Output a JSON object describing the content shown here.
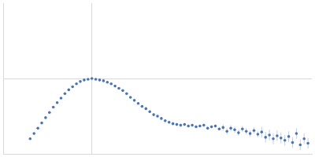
{
  "chart_data": {
    "type": "scatter",
    "x": [
      35,
      40,
      45,
      50,
      55,
      60,
      65,
      70,
      75,
      80,
      85,
      90,
      95,
      100,
      105,
      110,
      115,
      120,
      125,
      130,
      135,
      140,
      145,
      150,
      155,
      160,
      165,
      170,
      175,
      180,
      185,
      190,
      195,
      200,
      205,
      210,
      215,
      220,
      225,
      230,
      235,
      240,
      245,
      250,
      255,
      260,
      265,
      270,
      275,
      280,
      285,
      290,
      295,
      300,
      305,
      310,
      315,
      320,
      325,
      330,
      335,
      340,
      345,
      350,
      355,
      360,
      365,
      370,
      375,
      380,
      385,
      390,
      395
    ],
    "values": [
      20,
      27,
      34,
      41,
      48,
      55,
      62,
      68,
      74,
      80,
      85,
      89,
      93,
      96,
      98,
      99,
      100,
      99,
      98,
      97,
      95,
      93,
      90,
      87,
      84,
      80,
      75,
      71,
      67,
      63,
      60,
      56,
      52,
      50,
      47,
      44,
      42,
      40,
      39,
      38,
      39,
      37,
      38,
      36,
      37,
      38,
      34,
      36,
      37,
      33,
      35,
      30,
      34,
      32,
      28,
      33,
      30,
      27,
      31,
      26,
      29,
      22,
      25,
      20,
      24,
      21,
      18,
      23,
      15,
      27,
      12,
      20,
      14
    ],
    "errors": [
      1,
      1,
      1,
      1,
      1,
      1,
      1,
      1,
      1,
      1,
      1,
      1,
      1,
      1,
      1,
      1,
      1,
      1,
      1,
      1,
      1,
      1,
      1,
      1,
      1,
      1,
      1,
      1,
      1,
      1,
      2,
      2,
      2,
      2,
      2,
      2,
      2,
      2,
      2,
      2,
      2,
      2,
      2,
      2,
      2,
      2,
      2,
      2,
      2,
      2,
      4,
      4,
      4,
      4,
      4,
      4,
      4,
      4,
      4,
      4,
      7,
      7,
      7,
      7,
      7,
      7,
      7,
      7,
      7,
      7,
      7,
      7,
      7
    ],
    "color": "#4a74b8",
    "marker": "circle",
    "xlim": [
      0,
      400
    ],
    "ylim": [
      0,
      200
    ],
    "xticks": [
      115
    ],
    "yticks": [
      100
    ],
    "grid": true,
    "tick_labels": false
  }
}
